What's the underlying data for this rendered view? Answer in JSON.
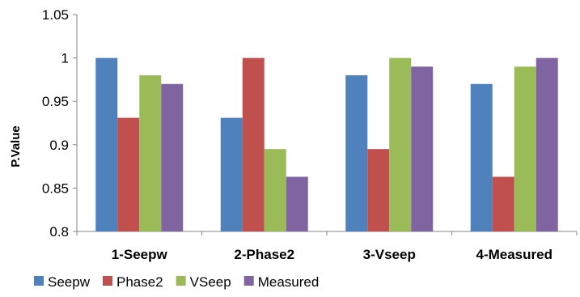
{
  "chart_data": {
    "type": "bar",
    "categories": [
      "1-Seepw",
      "2-Phase2",
      "3-Vseep",
      "4-Measured"
    ],
    "series": [
      {
        "name": "Seepw",
        "color": "#4F81BD",
        "values": [
          1.0,
          0.931,
          0.98,
          0.97
        ]
      },
      {
        "name": "Phase2",
        "color": "#C0504D",
        "values": [
          0.931,
          1.0,
          0.895,
          0.863
        ]
      },
      {
        "name": "VSeep",
        "color": "#9BBB59",
        "values": [
          0.98,
          0.895,
          1.0,
          0.99
        ]
      },
      {
        "name": "Measured",
        "color": "#8064A2",
        "values": [
          0.97,
          0.863,
          0.99,
          1.0
        ]
      }
    ],
    "ylabel": "P.Value",
    "xlabel": "",
    "ylim": [
      0.8,
      1.05
    ],
    "yticks": [
      "0.8",
      "0.85",
      "0.9",
      "0.95",
      "1",
      "1.05"
    ],
    "grid": false,
    "legend_position": "bottom-left"
  }
}
